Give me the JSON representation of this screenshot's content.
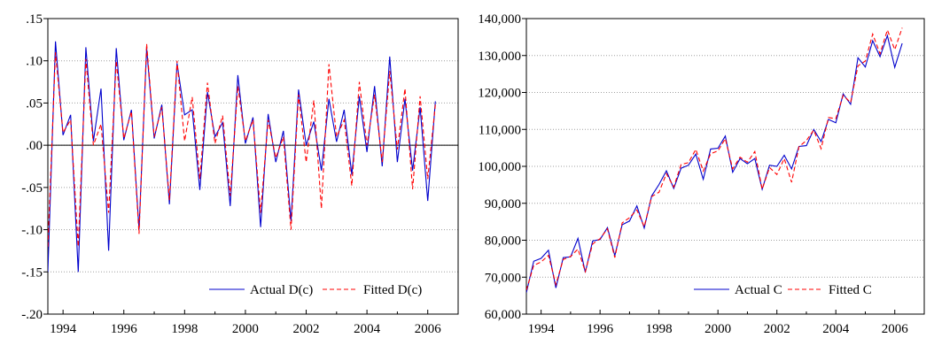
{
  "chart_data": [
    {
      "type": "line",
      "ylim": [
        -0.2,
        0.15
      ],
      "yticks": [
        0.15,
        0.1,
        0.05,
        0.0,
        -0.05,
        -0.1,
        -0.15,
        -0.2
      ],
      "ytick_labels": [
        ".15",
        ".10",
        ".05",
        ".00",
        "-.05",
        "-.10",
        "-.15",
        "-.20"
      ],
      "xlim": [
        1993.5,
        2007.0
      ],
      "xticks": [
        1994,
        1996,
        1998,
        2000,
        2002,
        2004,
        2006
      ],
      "xtick_labels": [
        "1994",
        "1996",
        "1998",
        "2000",
        "2002",
        "2004",
        "2006"
      ],
      "x_start": 1993.5,
      "x_step": 0.25,
      "grid": "horizontal dotted",
      "zero_line": true,
      "legend_position": "bottom-right",
      "series": [
        {
          "name": "Actual D(c)",
          "color": "#0000cc",
          "dash": "solid",
          "values": [
            -0.15,
            0.123,
            0.012,
            0.036,
            -0.15,
            0.116,
            0.005,
            0.067,
            -0.125,
            0.115,
            0.006,
            0.042,
            -0.1,
            0.115,
            0.008,
            0.048,
            -0.07,
            0.097,
            0.036,
            0.042,
            -0.053,
            0.063,
            0.01,
            0.027,
            -0.072,
            0.083,
            0.002,
            0.033,
            -0.097,
            0.037,
            -0.02,
            0.017,
            -0.09,
            0.066,
            0.0,
            0.028,
            -0.03,
            0.055,
            0.004,
            0.042,
            -0.035,
            0.058,
            -0.008,
            0.07,
            -0.025,
            0.105,
            -0.02,
            0.055,
            -0.03,
            0.045,
            -0.066,
            0.052
          ]
        },
        {
          "name": "Fitted D(c)",
          "color": "#ff0000",
          "dash": "dashed",
          "values": [
            -0.12,
            0.11,
            0.015,
            0.03,
            -0.12,
            0.102,
            0.0,
            0.025,
            -0.08,
            0.1,
            0.008,
            0.04,
            -0.105,
            0.12,
            0.01,
            0.045,
            -0.065,
            0.1,
            0.005,
            0.057,
            -0.04,
            0.074,
            0.002,
            0.035,
            -0.06,
            0.07,
            0.005,
            0.03,
            -0.08,
            0.03,
            -0.015,
            0.01,
            -0.1,
            0.06,
            -0.02,
            0.053,
            -0.075,
            0.096,
            0.01,
            0.03,
            -0.048,
            0.075,
            0.0,
            0.06,
            -0.02,
            0.088,
            -0.005,
            0.067,
            -0.052,
            0.058,
            -0.04,
            0.048
          ]
        }
      ]
    },
    {
      "type": "line",
      "ylim": [
        60000,
        140000
      ],
      "yticks": [
        60000,
        70000,
        80000,
        90000,
        100000,
        110000,
        120000,
        130000,
        140000
      ],
      "ytick_labels": [
        "60,000",
        "70,000",
        "80,000",
        "90,000",
        "100,000",
        "110,000",
        "120,000",
        "130,000",
        "140,000"
      ],
      "xlim": [
        1993.5,
        2007.0
      ],
      "xticks": [
        1994,
        1996,
        1998,
        2000,
        2002,
        2004,
        2006
      ],
      "xtick_labels": [
        "1994",
        "1996",
        "1998",
        "2000",
        "2002",
        "2004",
        "2006"
      ],
      "x_start": 1993.5,
      "x_step": 0.25,
      "grid": "horizontal dotted",
      "legend_position": "bottom-right",
      "series": [
        {
          "name": "Actual C",
          "color": "#0000cc",
          "dash": "solid",
          "values": [
            65800,
            74300,
            75100,
            77300,
            67100,
            75300,
            75500,
            80500,
            71300,
            79800,
            80200,
            83400,
            75800,
            84200,
            85200,
            89300,
            83300,
            92000,
            95100,
            98800,
            94000,
            99500,
            100300,
            103300,
            96500,
            104700,
            104900,
            108200,
            98400,
            102100,
            100700,
            102100,
            93800,
            100300,
            100000,
            103000,
            99300,
            105400,
            105600,
            110000,
            106700,
            112700,
            111800,
            119600,
            116800,
            129400,
            126900,
            134000,
            129700,
            135400,
            126800,
            133300
          ]
        },
        {
          "name": "Fitted C",
          "color": "#ff0000",
          "dash": "dashed",
          "values": [
            66500,
            73200,
            74100,
            75900,
            68000,
            74800,
            75600,
            77600,
            71500,
            79000,
            80400,
            83100,
            75300,
            84700,
            86100,
            88200,
            83700,
            91800,
            93000,
            98000,
            94400,
            100500,
            101000,
            104600,
            98700,
            103400,
            104200,
            107500,
            99300,
            102500,
            101100,
            104000,
            93800,
            99700,
            97800,
            102100,
            95700,
            105300,
            107000,
            109800,
            104800,
            113200,
            112900,
            119200,
            117300,
            127200,
            128500,
            135800,
            130500,
            136900,
            131600,
            137500
          ]
        }
      ]
    }
  ]
}
